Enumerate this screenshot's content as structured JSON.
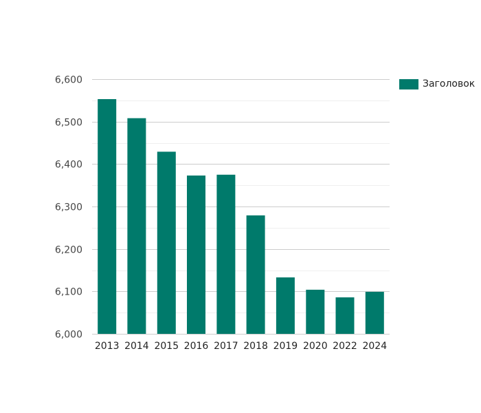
{
  "chart_data": {
    "type": "bar",
    "categories": [
      "2013",
      "2014",
      "2015",
      "2016",
      "2017",
      "2018",
      "2019",
      "2020",
      "2022",
      "2024"
    ],
    "series": [
      {
        "name": "Заголовок",
        "color": "#007a6b",
        "values": [
          6553,
          6508,
          6429,
          6373,
          6375,
          6279,
          6133,
          6104,
          6086,
          6099
        ]
      }
    ],
    "title": "",
    "xlabel": "",
    "ylabel": "",
    "ylim": [
      6000,
      6600
    ],
    "yticks": [
      6000,
      6100,
      6200,
      6300,
      6400,
      6500,
      6600
    ],
    "ytick_labels": [
      "6,000",
      "6,100",
      "6,200",
      "6,300",
      "6,400",
      "6,500",
      "6,600"
    ],
    "grid": true,
    "legend_position": "top-right"
  }
}
